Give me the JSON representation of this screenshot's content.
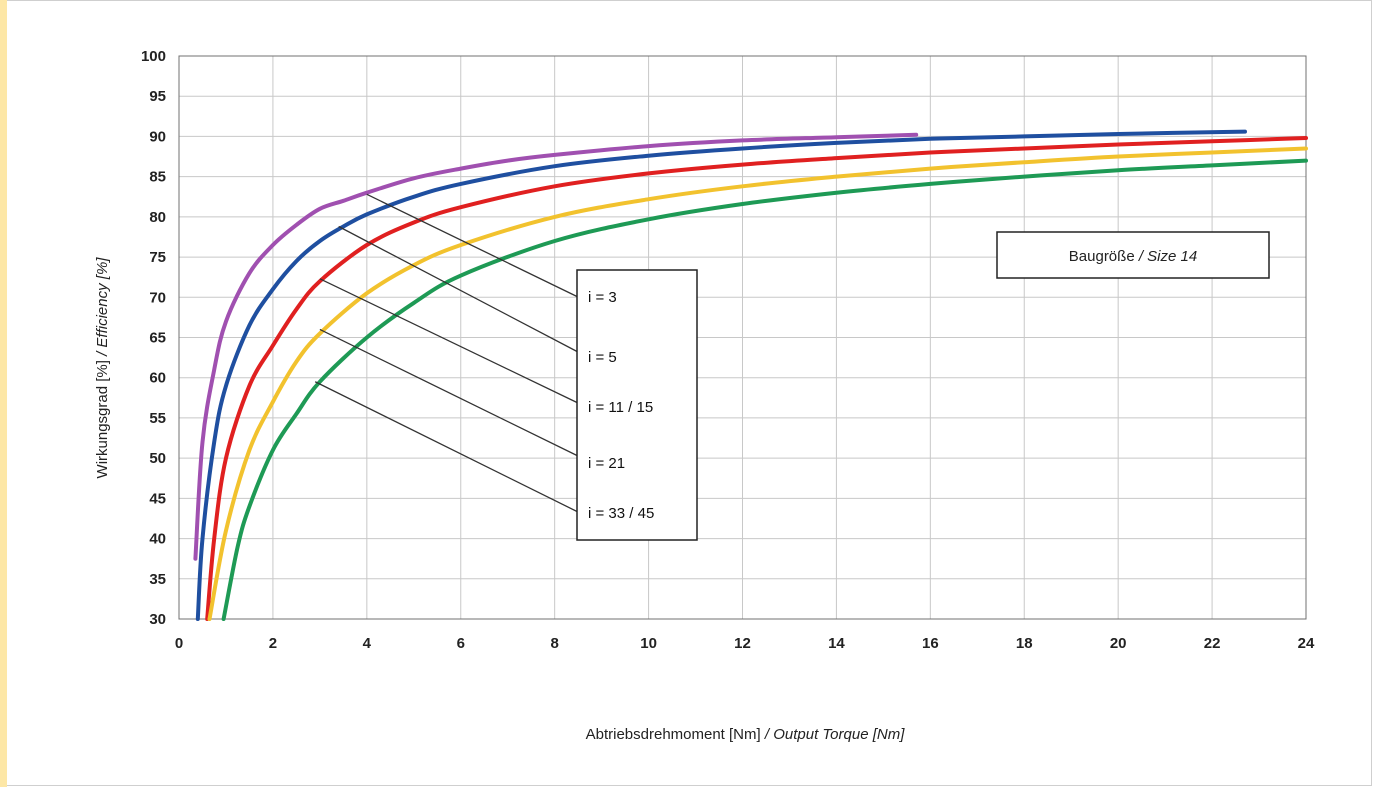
{
  "chart_data": {
    "type": "line",
    "xlabel": "Abtriebsdrehmoment [Nm]",
    "xlabel_en": "Output Torque [Nm]",
    "ylabel": "Wirkungsgrad [%]",
    "ylabel_en": "Efficiency [%]",
    "size_label": "Baugröße",
    "size_label_en": "Size 14",
    "xlim": [
      0,
      24
    ],
    "ylim": [
      30,
      100
    ],
    "x_ticks": [
      0,
      2,
      4,
      6,
      8,
      10,
      12,
      14,
      16,
      18,
      20,
      22,
      24
    ],
    "x_tick_labels": [
      "0",
      "2",
      "4",
      "6",
      "8",
      "10",
      "12",
      "14",
      "16",
      "18",
      "20",
      "22",
      "24"
    ],
    "y_ticks": [
      30,
      35,
      40,
      45,
      50,
      55,
      60,
      65,
      70,
      75,
      80,
      85,
      90,
      95,
      100
    ],
    "grid": true,
    "series": [
      {
        "name": "i = 3",
        "color": "#a050b0",
        "x": [
          0.35,
          0.5,
          0.75,
          1,
          1.5,
          2,
          2.5,
          3,
          3.5,
          4,
          5,
          6,
          7,
          8,
          10,
          12,
          14,
          15.7
        ],
        "y": [
          37.5,
          52,
          61,
          67,
          73,
          76.5,
          79,
          81,
          82,
          83,
          84.8,
          86,
          87,
          87.7,
          88.8,
          89.5,
          89.9,
          90.2
        ]
      },
      {
        "name": "i = 5",
        "color": "#1f4fa0",
        "x": [
          0.4,
          0.5,
          0.75,
          1,
          1.5,
          2,
          2.5,
          3,
          3.5,
          4,
          5,
          6,
          8,
          10,
          12,
          14,
          16,
          18,
          20,
          22.7
        ],
        "y": [
          30,
          40,
          52,
          59,
          66.5,
          71,
          74.5,
          77,
          78.8,
          80.3,
          82.5,
          84.1,
          86.3,
          87.6,
          88.5,
          89.2,
          89.7,
          90,
          90.3,
          90.6
        ]
      },
      {
        "name": "i = 11 / 15",
        "color": "#e02020",
        "x": [
          0.6,
          0.75,
          1,
          1.5,
          2,
          2.5,
          3,
          4,
          5,
          6,
          8,
          10,
          12,
          14,
          16,
          18,
          20,
          22,
          24
        ],
        "y": [
          30,
          40,
          50,
          59,
          64,
          68.5,
          72,
          76.5,
          79.3,
          81.2,
          83.8,
          85.4,
          86.5,
          87.3,
          88,
          88.5,
          89,
          89.4,
          89.8
        ]
      },
      {
        "name": "i = 21",
        "color": "#f2c22e",
        "x": [
          0.65,
          1,
          1.5,
          2,
          2.5,
          3,
          4,
          5,
          6,
          8,
          10,
          12,
          14,
          16,
          18,
          20,
          22,
          24
        ],
        "y": [
          30,
          41,
          51,
          57,
          62,
          65.5,
          70.5,
          74,
          76.5,
          80,
          82.2,
          83.8,
          85,
          86,
          86.8,
          87.5,
          88,
          88.5
        ]
      },
      {
        "name": "i = 33 / 45",
        "color": "#1e9a55",
        "x": [
          0.95,
          1.25,
          1.5,
          2,
          2.5,
          3,
          4,
          5,
          6,
          8,
          10,
          12,
          14,
          16,
          18,
          20,
          22,
          24
        ],
        "y": [
          30,
          39,
          44,
          51,
          55.5,
          59.5,
          65,
          69.3,
          72.7,
          77,
          79.7,
          81.6,
          83,
          84.1,
          85,
          85.8,
          86.4,
          87
        ]
      }
    ],
    "pointers": [
      {
        "series": "i = 3",
        "x": 4,
        "y": 82.8
      },
      {
        "series": "i = 5",
        "x": 3.4,
        "y": 78.8
      },
      {
        "series": "i = 11 / 15",
        "x": 3.0,
        "y": 72.3
      },
      {
        "series": "i = 21",
        "x": 3.0,
        "y": 66
      },
      {
        "series": "i = 33 / 45",
        "x": 2.9,
        "y": 59.5
      }
    ]
  }
}
